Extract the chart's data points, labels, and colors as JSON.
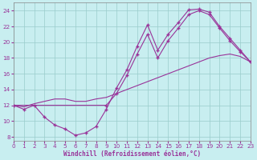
{
  "background_color": "#c8eef0",
  "line_color": "#993399",
  "grid_color": "#99cccc",
  "xlabel": "Windchill (Refroidissement éolien,°C)",
  "xlim": [
    0,
    23
  ],
  "ylim": [
    7.5,
    25.0
  ],
  "yticks": [
    8,
    10,
    12,
    14,
    16,
    18,
    20,
    22,
    24
  ],
  "xticks": [
    0,
    1,
    2,
    3,
    4,
    5,
    6,
    7,
    8,
    9,
    10,
    11,
    12,
    13,
    14,
    15,
    16,
    17,
    18,
    19,
    20,
    21,
    22,
    23
  ],
  "curve1_x": [
    0,
    1,
    2,
    3,
    4,
    5,
    6,
    7,
    8,
    9,
    10,
    11,
    12,
    13,
    14,
    15,
    16,
    17,
    18,
    19,
    20,
    21,
    22,
    23
  ],
  "curve1_y": [
    12.0,
    11.5,
    12.0,
    10.5,
    9.5,
    9.0,
    8.2,
    8.5,
    9.3,
    11.5,
    14.2,
    16.5,
    19.5,
    22.2,
    19.0,
    21.0,
    22.5,
    24.1,
    24.2,
    23.8,
    22.0,
    20.5,
    19.0,
    17.5
  ],
  "curve2_x": [
    0,
    9,
    10,
    11,
    12,
    13,
    14,
    15,
    16,
    17,
    18,
    19,
    20,
    21,
    22,
    23
  ],
  "curve2_y": [
    12.0,
    12.0,
    13.5,
    15.8,
    18.5,
    21.0,
    18.0,
    20.2,
    21.8,
    23.5,
    24.0,
    23.5,
    21.8,
    20.2,
    18.8,
    17.5
  ],
  "curve3_x": [
    0,
    1,
    2,
    3,
    4,
    5,
    6,
    7,
    8,
    9,
    10,
    11,
    12,
    13,
    14,
    15,
    16,
    17,
    18,
    19,
    20,
    21,
    22,
    23
  ],
  "curve3_y": [
    12.0,
    11.8,
    12.2,
    12.5,
    12.8,
    12.8,
    12.5,
    12.5,
    12.8,
    13.0,
    13.5,
    14.0,
    14.5,
    15.0,
    15.5,
    16.0,
    16.5,
    17.0,
    17.5,
    18.0,
    18.3,
    18.5,
    18.2,
    17.5
  ]
}
